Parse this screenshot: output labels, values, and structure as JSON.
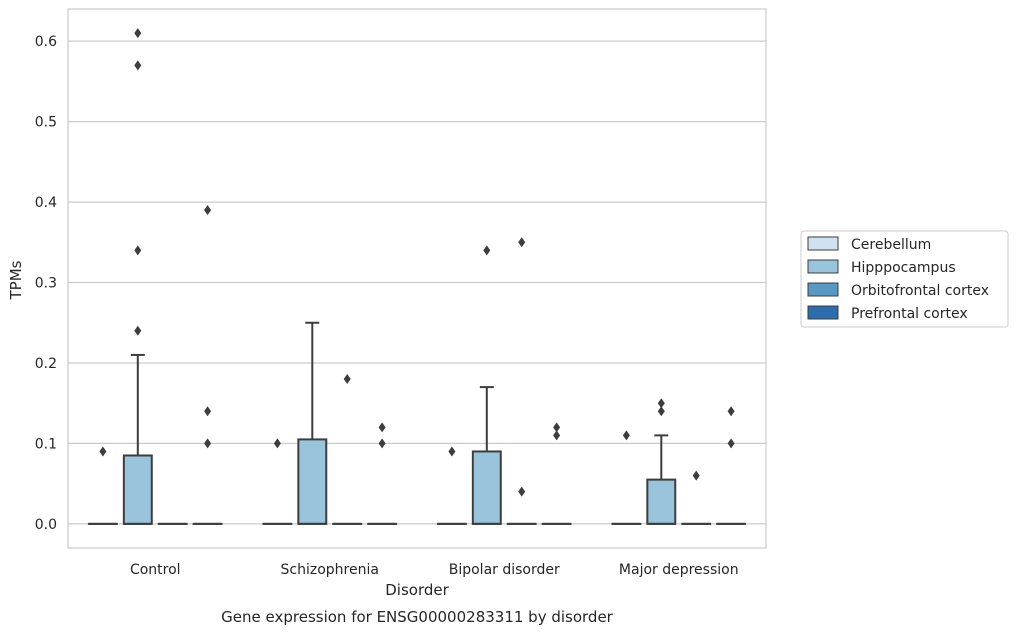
{
  "chart_data": {
    "type": "box",
    "title": "Gene expression for ENSG00000283311 by disorder",
    "xlabel": "Disorder",
    "ylabel": "TPMs",
    "ylim": [
      -0.03,
      0.64
    ],
    "yticks": [
      0.0,
      0.1,
      0.2,
      0.3,
      0.4,
      0.5,
      0.6
    ],
    "ytick_labels": [
      "0.0",
      "0.1",
      "0.2",
      "0.3",
      "0.4",
      "0.5",
      "0.6"
    ],
    "grid": true,
    "legend_placement": "right",
    "categories": [
      "Control",
      "Schizophrenia",
      "Bipolar disorder",
      "Major depression"
    ],
    "series": [
      {
        "name": "Cerebellum",
        "color": "#d0e1f2",
        "boxes": [
          {
            "q1": 0,
            "median": 0,
            "q3": 0,
            "whislo": 0,
            "whishi": 0,
            "fliers": [
              0.09
            ]
          },
          {
            "q1": 0,
            "median": 0,
            "q3": 0,
            "whislo": 0,
            "whishi": 0,
            "fliers": [
              0.1
            ]
          },
          {
            "q1": 0,
            "median": 0,
            "q3": 0,
            "whislo": 0,
            "whishi": 0,
            "fliers": [
              0.09
            ]
          },
          {
            "q1": 0,
            "median": 0,
            "q3": 0,
            "whislo": 0,
            "whishi": 0,
            "fliers": [
              0.11
            ]
          }
        ]
      },
      {
        "name": "Hipppocampus",
        "color": "#9ac3dc",
        "boxes": [
          {
            "q1": 0,
            "median": 0,
            "q3": 0.085,
            "whislo": 0,
            "whishi": 0.21,
            "fliers": [
              0.24,
              0.34,
              0.57,
              0.61
            ]
          },
          {
            "q1": 0,
            "median": 0,
            "q3": 0.105,
            "whislo": 0,
            "whishi": 0.25,
            "fliers": []
          },
          {
            "q1": 0,
            "median": 0,
            "q3": 0.09,
            "whislo": 0,
            "whishi": 0.17,
            "fliers": [
              0.34
            ]
          },
          {
            "q1": 0,
            "median": 0,
            "q3": 0.055,
            "whislo": 0,
            "whishi": 0.11,
            "fliers": [
              0.14,
              0.15
            ]
          }
        ]
      },
      {
        "name": "Orbitofrontal cortex",
        "color": "#5997c5",
        "boxes": [
          {
            "q1": 0,
            "median": 0,
            "q3": 0,
            "whislo": 0,
            "whishi": 0,
            "fliers": []
          },
          {
            "q1": 0,
            "median": 0,
            "q3": 0,
            "whislo": 0,
            "whishi": 0,
            "fliers": [
              0.18
            ]
          },
          {
            "q1": 0,
            "median": 0,
            "q3": 0,
            "whislo": 0,
            "whishi": 0,
            "fliers": [
              0.04,
              0.35
            ]
          },
          {
            "q1": 0,
            "median": 0,
            "q3": 0,
            "whislo": 0,
            "whishi": 0,
            "fliers": [
              0.06
            ]
          }
        ]
      },
      {
        "name": "Prefrontal cortex",
        "color": "#2c6ead",
        "boxes": [
          {
            "q1": 0,
            "median": 0,
            "q3": 0,
            "whislo": 0,
            "whishi": 0,
            "fliers": [
              0.1,
              0.14,
              0.39
            ]
          },
          {
            "q1": 0,
            "median": 0,
            "q3": 0,
            "whislo": 0,
            "whishi": 0,
            "fliers": [
              0.1,
              0.12
            ]
          },
          {
            "q1": 0,
            "median": 0,
            "q3": 0,
            "whislo": 0,
            "whishi": 0,
            "fliers": [
              0.11,
              0.12
            ]
          },
          {
            "q1": 0,
            "median": 0,
            "q3": 0,
            "whislo": 0,
            "whishi": 0,
            "fliers": [
              0.1,
              0.14
            ]
          }
        ]
      }
    ]
  }
}
